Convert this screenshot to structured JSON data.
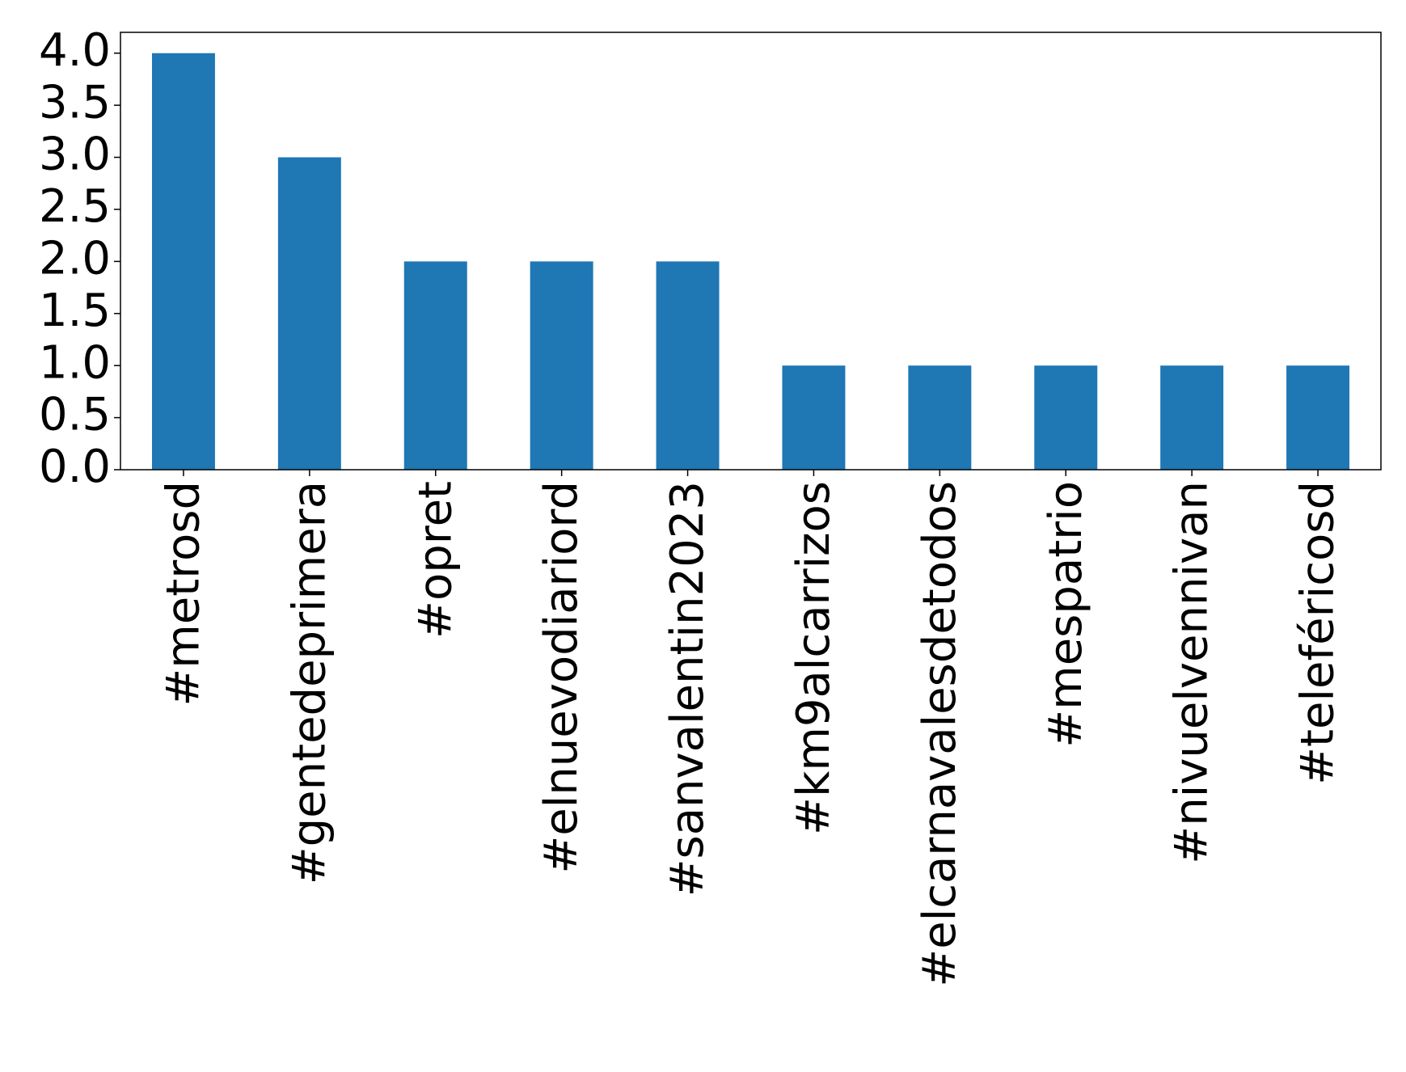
{
  "chart_data": {
    "type": "bar",
    "categories": [
      "#metrosd",
      "#gentedeprimera",
      "#opret",
      "#elnuevodiariord",
      "#sanvalentin2023",
      "#km9alcarrizos",
      "#elcarnavalesdetodos",
      "#mespatrio",
      "#nivuelvennivan",
      "#teleféricosd"
    ],
    "values": [
      4,
      3,
      2,
      2,
      2,
      1,
      1,
      1,
      1,
      1
    ],
    "color": "#1f77b4",
    "ylim": [
      0,
      4.2
    ],
    "yticks": [
      {
        "value": 0,
        "label": "0.0"
      },
      {
        "value": 0.5,
        "label": "0.5"
      },
      {
        "value": 1,
        "label": "1.0"
      },
      {
        "value": 1.5,
        "label": "1.5"
      },
      {
        "value": 2,
        "label": "2.0"
      },
      {
        "value": 2.5,
        "label": "2.5"
      },
      {
        "value": 3,
        "label": "3.0"
      },
      {
        "value": 3.5,
        "label": "3.5"
      },
      {
        "value": 4,
        "label": "4.0"
      }
    ],
    "grid": false
  }
}
